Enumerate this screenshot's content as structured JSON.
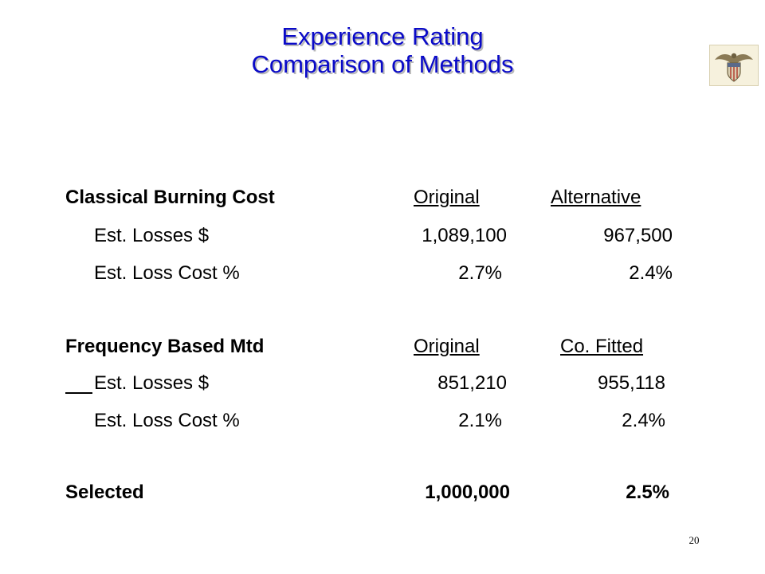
{
  "slide": {
    "title_line1": "Experience Rating",
    "title_line2": "Comparison of Methods",
    "page_number": "20",
    "logo": {
      "icon": "eagle-shield-crest"
    },
    "sections": {
      "classical": {
        "heading": "Classical Burning Cost",
        "col1_header": "Original",
        "col2_header": "Alternative",
        "rows": [
          {
            "label": "Est. Losses $",
            "col1": "1,089,100",
            "col2": "967,500"
          },
          {
            "label": "Est. Loss Cost %",
            "col1": "2.7%",
            "col2": "2.4%"
          }
        ]
      },
      "frequency": {
        "heading": "Frequency Based Mtd",
        "col1_header": "Original",
        "col2_header": "Co. Fitted",
        "rows": [
          {
            "label": "Est. Losses $",
            "col1": "851,210",
            "col2": "955,118"
          },
          {
            "label": "Est. Loss Cost %",
            "col1": "2.1%",
            "col2": "2.4%"
          }
        ]
      },
      "selected": {
        "label": "Selected",
        "col1": "1,000,000",
        "col2": "2.5%"
      }
    },
    "colors": {
      "title": "#0a0ac8",
      "title_shadow": "#b8b8b8",
      "text": "#000000"
    }
  }
}
